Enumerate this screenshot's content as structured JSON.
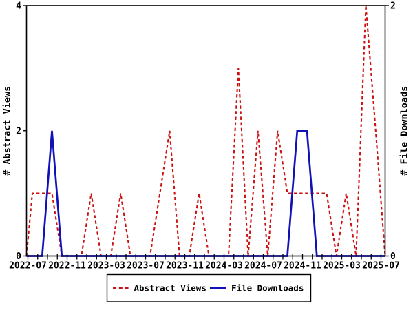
{
  "chart_data": {
    "type": "line",
    "title": "",
    "x_unit": "month",
    "months": [
      "2022-07",
      "2022-08",
      "2022-09",
      "2022-10",
      "2022-11",
      "2022-12",
      "2023-01",
      "2023-02",
      "2023-03",
      "2023-04",
      "2023-05",
      "2023-06",
      "2023-07",
      "2023-08",
      "2023-09",
      "2023-10",
      "2023-11",
      "2023-12",
      "2024-01",
      "2024-02",
      "2024-03",
      "2024-04",
      "2024-05",
      "2024-06",
      "2024-07",
      "2024-08",
      "2024-09",
      "2024-10",
      "2024-11",
      "2024-12",
      "2025-01",
      "2025-02",
      "2025-03",
      "2025-04",
      "2025-05",
      "2025-06",
      "2025-07"
    ],
    "x_tick_labels": [
      "2022-07",
      "2022-11",
      "2023-03",
      "2023-07",
      "2023-11",
      "2024-03",
      "2024-07",
      "2024-11",
      "2025-03",
      "2025-07"
    ],
    "left_axis": {
      "label": "# Abstract Views",
      "tick_labels": [
        "0",
        "2",
        "4"
      ],
      "tick_values": [
        0,
        2,
        4
      ],
      "range": [
        0,
        4
      ]
    },
    "right_axis": {
      "label": "# File Downloads",
      "tick_labels": [
        "0",
        "2"
      ],
      "tick_values": [
        0,
        2
      ],
      "range": [
        0,
        2
      ]
    },
    "grid": false,
    "legend_position": "bottom-center",
    "series": [
      {
        "name": "Abstract Views",
        "axis": "left",
        "line_style": "dashed",
        "color": "#cc1111",
        "values": [
          1,
          1,
          1,
          0,
          0,
          0,
          1,
          0,
          0,
          1,
          0,
          0,
          0,
          1,
          2,
          0,
          0,
          1,
          0,
          0,
          0,
          3,
          0,
          2,
          0,
          2,
          1,
          1,
          1,
          1,
          1,
          0,
          1,
          0,
          4,
          2,
          0
        ]
      },
      {
        "name": "File Downloads",
        "axis": "right",
        "line_style": "solid",
        "color": "#1111b8",
        "values": [
          0,
          0,
          1,
          0,
          0,
          0,
          0,
          0,
          0,
          0,
          0,
          0,
          0,
          0,
          0,
          0,
          0,
          0,
          0,
          0,
          0,
          0,
          0,
          0,
          0,
          0,
          0,
          1,
          1,
          0,
          0,
          0,
          0,
          0,
          0,
          0,
          0
        ]
      }
    ]
  },
  "legend": {
    "items": [
      {
        "label": "Abstract Views",
        "swatch": "red-dashed-line"
      },
      {
        "label": "File Downloads",
        "swatch": "blue-solid-line"
      }
    ]
  },
  "colors": {
    "background": "#ffffff",
    "axis": "#000000",
    "abstract_views": "#cc1111",
    "file_downloads": "#1111b8"
  }
}
